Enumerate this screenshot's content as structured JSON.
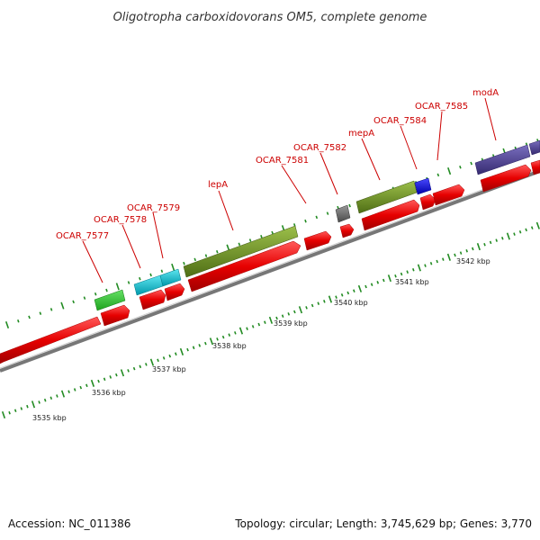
{
  "title": "Oligotropha carboxidovorans OM5, complete genome",
  "footer": {
    "accession": "Accession: NC_011386",
    "summary": "Topology: circular; Length: 3,745,629 bp; Genes: 3,770"
  },
  "colors": {
    "cds_red": "#e60000",
    "green_light": "#33cc33",
    "cyan": "#00c0d0",
    "olive": "#6b8e23",
    "gray": "#666666",
    "blue": "#0000dd",
    "purple": "#4b3f8c",
    "label_red": "#cc0000",
    "tick_green": "#228b22",
    "backbone": "#888888"
  },
  "kbp_labels": [
    "3535 kbp",
    "3536 kbp",
    "3537 kbp",
    "3538 kbp",
    "3539 kbp",
    "3540 kbp",
    "3541 kbp",
    "3542 kbp"
  ],
  "gene_labels": [
    "OCAR_7577",
    "OCAR_7578",
    "OCAR_7579",
    "lepA",
    "OCAR_7581",
    "OCAR_7582",
    "mepA",
    "OCAR_7584",
    "OCAR_7585",
    "modA"
  ]
}
